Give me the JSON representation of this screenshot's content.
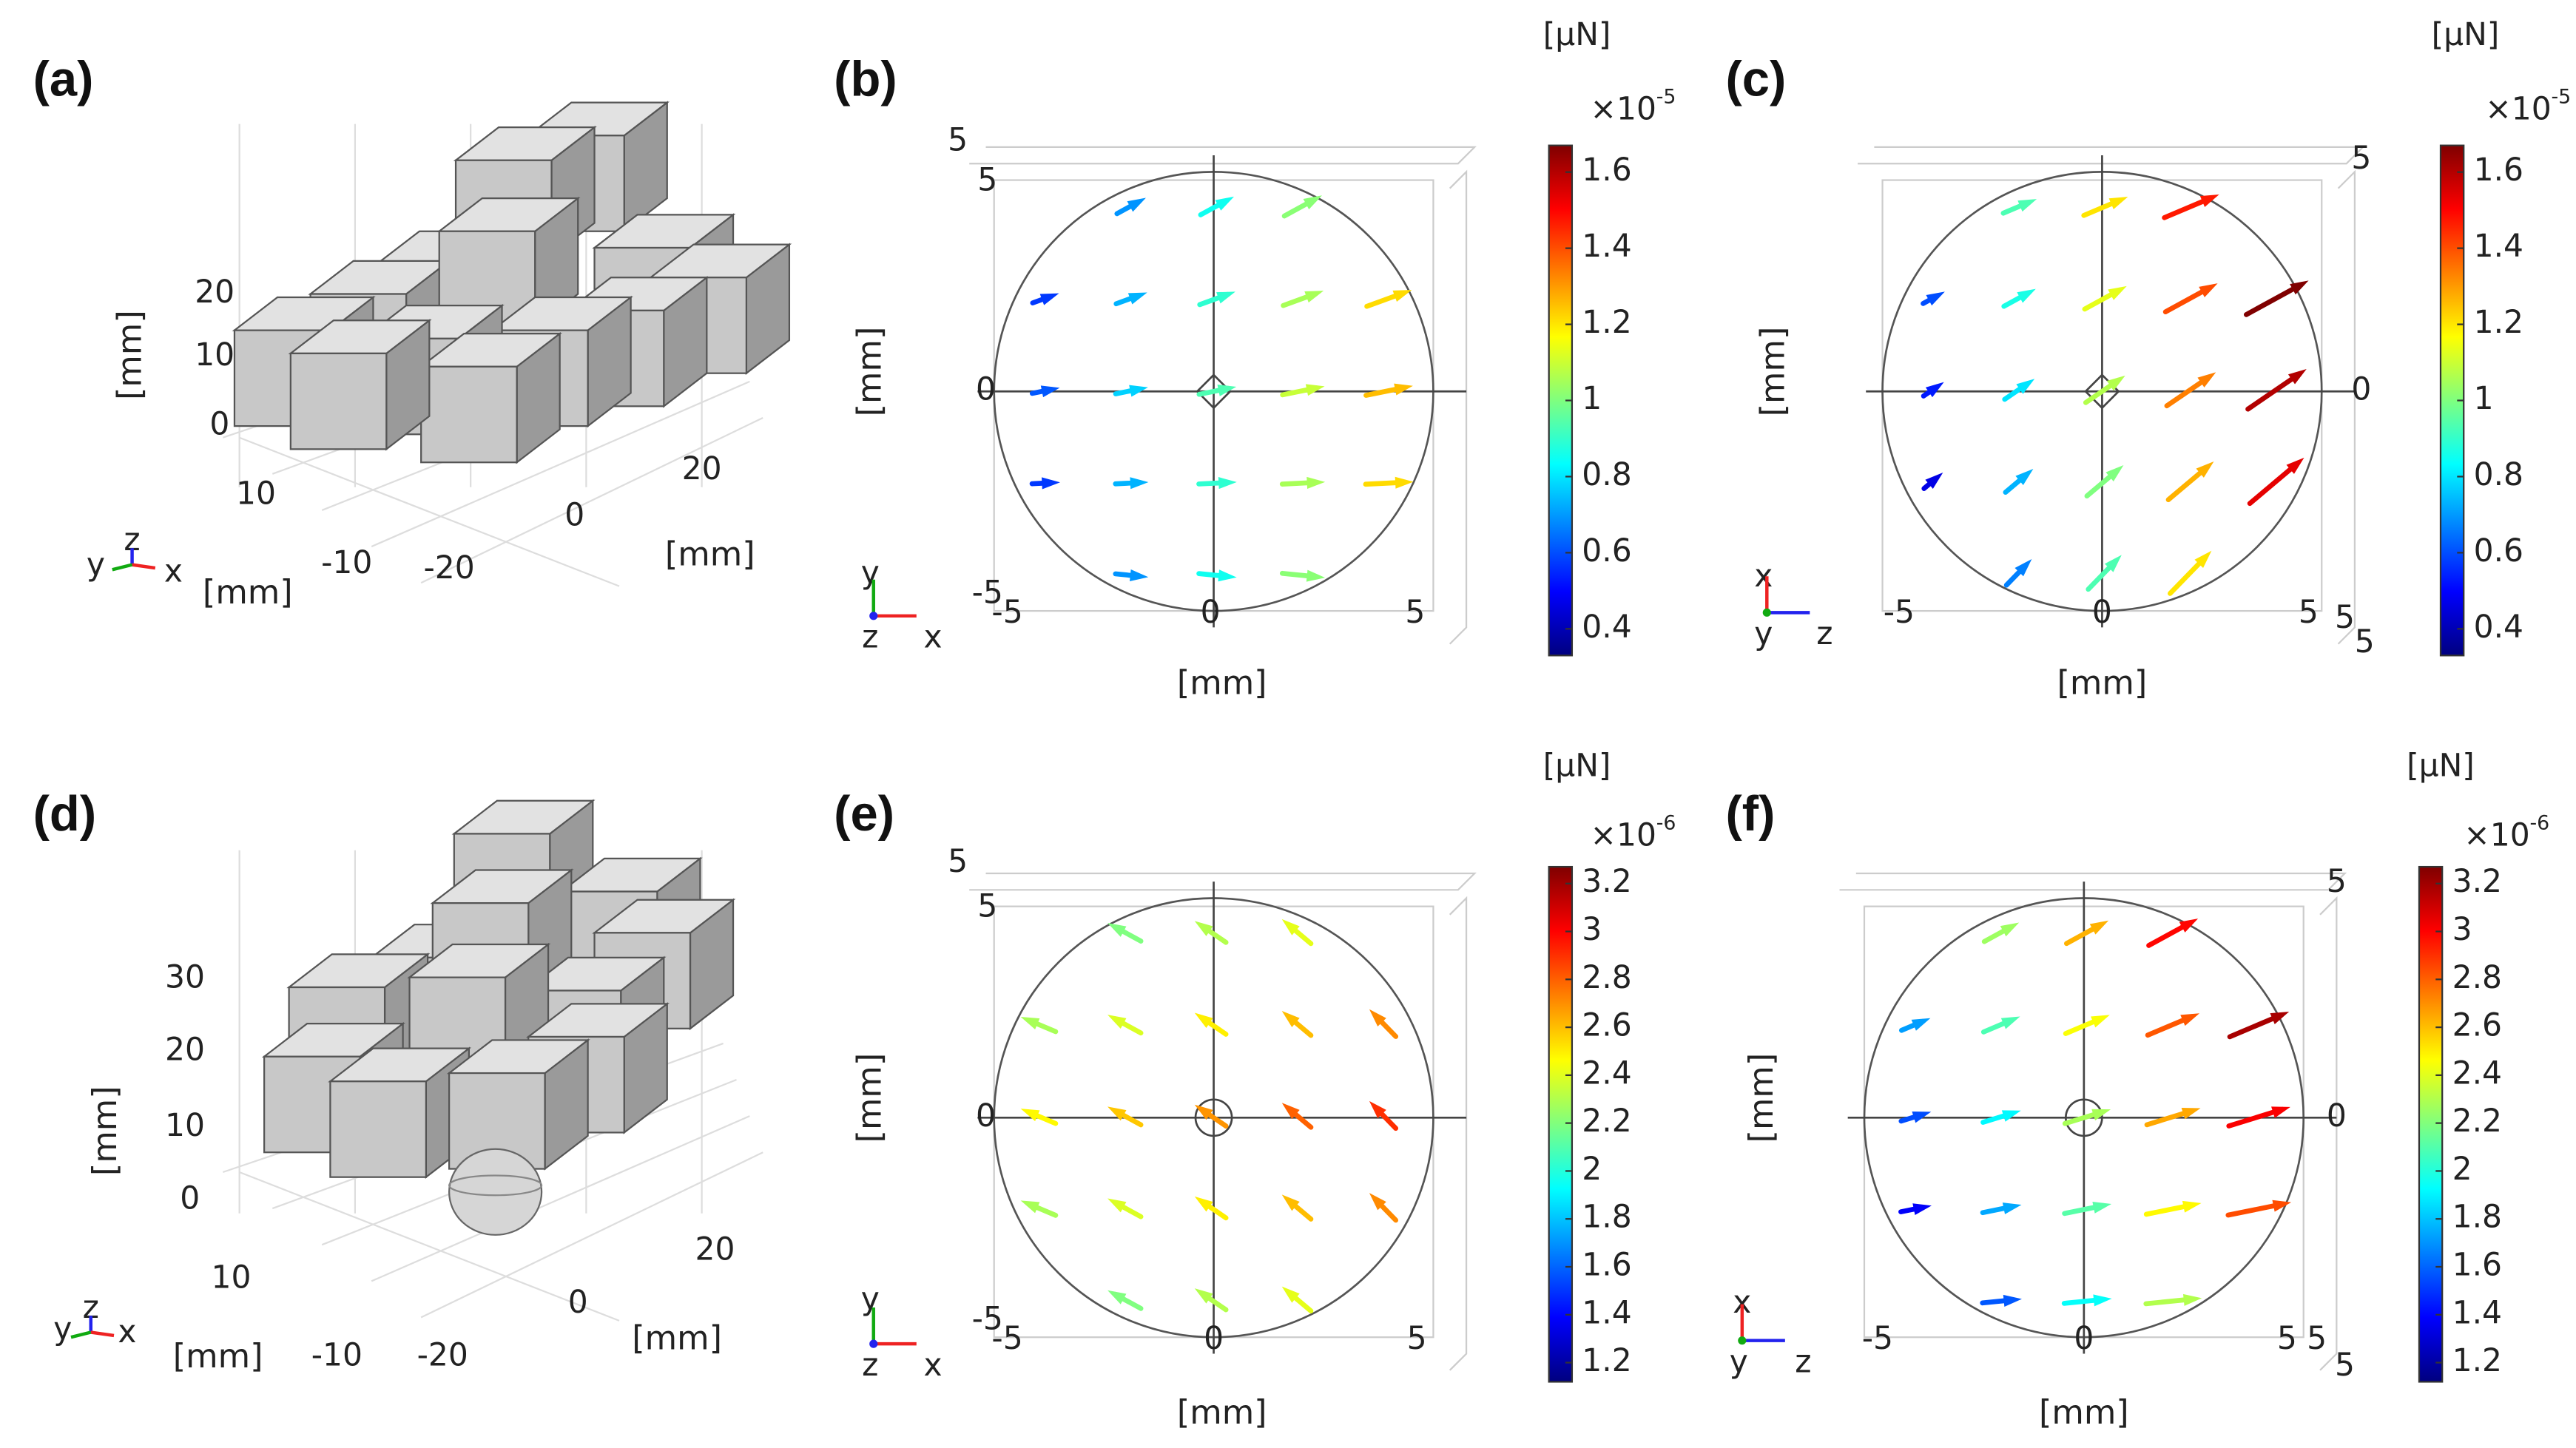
{
  "panels": [
    {
      "label": "(a)",
      "kind": "3d",
      "z_ticks": [
        "20",
        "10",
        "0"
      ],
      "y_ticks": [
        "10",
        "-10",
        "-20"
      ],
      "x_ticks": [
        "0",
        "20"
      ],
      "axis_labels": [
        "[mm]",
        "[mm]",
        "[mm]"
      ],
      "triad": [
        "y",
        "z",
        "x"
      ]
    },
    {
      "label": "(b)",
      "kind": "2d",
      "tick_labels": [
        "5",
        "5",
        "0",
        "-5",
        "-5",
        "0",
        "5"
      ],
      "axis_labels": [
        "[mm]",
        "[mm]"
      ],
      "triad": [
        "y",
        "z",
        "x"
      ],
      "colorbar": {
        "unit": "[μN]",
        "multiplier": "×10",
        "power": "-5",
        "lim": [
          0.33,
          1.67
        ],
        "ticks": [
          1.6,
          1.4,
          1.2,
          1,
          0.8,
          0.6,
          0.4
        ]
      }
    },
    {
      "label": "(c)",
      "kind": "2d",
      "tick_labels": [
        "5",
        "0",
        "-5",
        "0",
        "5",
        "5",
        "5"
      ],
      "axis_labels": [
        "[mm]",
        "[mm]"
      ],
      "triad": [
        "x",
        "y",
        "z"
      ],
      "colorbar": {
        "unit": "[μN]",
        "multiplier": "×10",
        "power": "-5",
        "lim": [
          0.33,
          1.67
        ],
        "ticks": [
          1.6,
          1.4,
          1.2,
          1,
          0.8,
          0.6,
          0.4
        ]
      }
    },
    {
      "label": "(d)",
      "kind": "3d",
      "z_ticks": [
        "30",
        "20",
        "10",
        "0"
      ],
      "y_ticks": [
        "10",
        "-10",
        "-20"
      ],
      "x_ticks": [
        "0",
        "20"
      ],
      "axis_labels": [
        "[mm]",
        "[mm]",
        "[mm]"
      ],
      "triad": [
        "y",
        "z",
        "x"
      ]
    },
    {
      "label": "(e)",
      "kind": "2d",
      "tick_labels": [
        "5",
        "5",
        "0",
        "-5",
        "-5",
        "0",
        "5"
      ],
      "axis_labels": [
        "[mm]",
        "[mm]"
      ],
      "triad": [
        "y",
        "z",
        "x"
      ],
      "colorbar": {
        "unit": "[μN]",
        "multiplier": "×10",
        "power": "-6",
        "lim": [
          1.12,
          3.27
        ],
        "ticks": [
          3.2,
          3,
          2.8,
          2.6,
          2.4,
          2.2,
          2,
          1.8,
          1.6,
          1.4,
          1.2
        ]
      }
    },
    {
      "label": "(f)",
      "kind": "2d",
      "tick_labels": [
        "5",
        "0",
        "-5",
        "0",
        "5",
        "5",
        "5"
      ],
      "axis_labels": [
        "[mm]",
        "[mm]"
      ],
      "triad": [
        "x",
        "y",
        "z"
      ],
      "colorbar": {
        "unit": "[μN]",
        "multiplier": "×10",
        "power": "-6",
        "lim": [
          1.12,
          3.27
        ],
        "ticks": [
          3.2,
          3,
          2.8,
          2.6,
          2.4,
          2.2,
          2,
          1.8,
          1.6,
          1.4,
          1.2
        ]
      }
    }
  ]
}
